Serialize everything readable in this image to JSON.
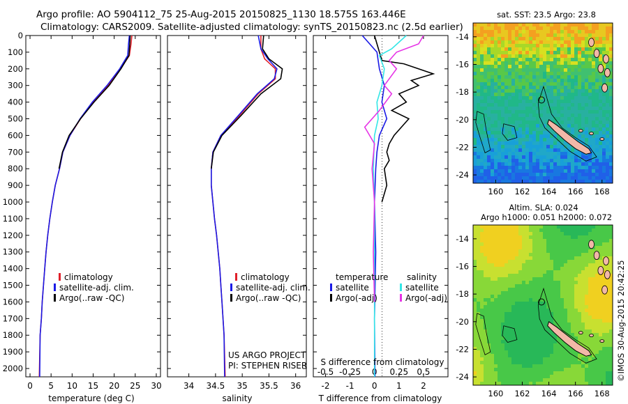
{
  "header": {
    "line1": "Argo profile: AO 5904112_75 25-Aug-2015 20150825_1130 18.575S 163.446E",
    "line2": "Climatology: CARS2009. Satellite-adjusted climatology: synTS_20150823.nc (2.5d earlier)"
  },
  "colors": {
    "climatology": "#e0202a",
    "satellite": "#1a1ae6",
    "argo": "#000000",
    "sal_satellite": "#33e6e6",
    "sal_argo": "#e633e6"
  },
  "credit": {
    "line1": "US ARGO PROJECT",
    "line2": "PI: STEPHEN RISER"
  },
  "watermark": "©IMOS 30-Aug-2015 20:42:25",
  "chart_data": [
    {
      "type": "line",
      "panel": "temperature",
      "xlabel": "temperature (deg C)",
      "xlim": [
        -1,
        31
      ],
      "ylim": [
        2050,
        0
      ],
      "yreversed": true,
      "x_ticks": [
        0,
        5,
        10,
        15,
        20,
        25,
        30
      ],
      "y_ticks": [
        0,
        100,
        200,
        300,
        400,
        500,
        600,
        700,
        800,
        900,
        1000,
        1100,
        1200,
        1300,
        1400,
        1500,
        1600,
        1700,
        1800,
        1900,
        2000
      ],
      "legend": [
        "climatology",
        "satellite-adj. clim.",
        "Argo(..raw -QC)"
      ],
      "series": [
        {
          "name": "climatology",
          "color_key": "climatology",
          "x": [
            24.2,
            24.0,
            23.6,
            21.5,
            18.5,
            15.0,
            12.0,
            9.5,
            7.8,
            7.0,
            6.0,
            5.3,
            4.7,
            4.2,
            3.8,
            3.5,
            3.2,
            2.9,
            2.7,
            2.4,
            2.2
          ],
          "y": [
            0,
            50,
            120,
            200,
            300,
            400,
            500,
            600,
            700,
            800,
            900,
            1000,
            1100,
            1200,
            1300,
            1400,
            1500,
            1600,
            1700,
            1800,
            2050
          ]
        },
        {
          "name": "satellite-adj. clim.",
          "color_key": "satellite",
          "x": [
            23.6,
            23.4,
            23.2,
            21.3,
            18.3,
            14.8,
            11.9,
            9.5,
            7.8,
            7.0,
            6.0,
            5.3,
            4.7,
            4.2,
            3.8,
            3.5,
            3.2,
            2.9,
            2.7,
            2.4,
            2.3
          ],
          "y": [
            0,
            50,
            120,
            200,
            300,
            400,
            500,
            600,
            700,
            800,
            900,
            1000,
            1100,
            1200,
            1300,
            1400,
            1500,
            1600,
            1700,
            1800,
            2050
          ]
        },
        {
          "name": "Argo(..raw -QC)",
          "color_key": "argo",
          "x": [
            23.8,
            23.7,
            23.5,
            21.6,
            18.8,
            15.2,
            12.0,
            9.3,
            7.7,
            6.9
          ],
          "y": [
            0,
            50,
            120,
            200,
            300,
            400,
            500,
            600,
            700,
            800
          ]
        }
      ]
    },
    {
      "type": "line",
      "panel": "salinity",
      "xlabel": "salinity",
      "xlim": [
        33.6,
        36.2
      ],
      "ylim": [
        2050,
        0
      ],
      "yreversed": true,
      "x_ticks": [
        34,
        34.5,
        35,
        35.5,
        36
      ],
      "legend": [
        "climatology",
        "satellite-adj. clim.",
        "Argo(..raw -QC)"
      ],
      "series": [
        {
          "name": "climatology",
          "color_key": "climatology",
          "x": [
            35.35,
            35.35,
            35.42,
            35.62,
            35.62,
            35.3,
            34.95,
            34.6,
            34.45,
            34.42,
            34.42,
            34.45,
            34.48,
            34.52,
            34.55,
            34.58,
            34.6,
            34.62,
            34.64,
            34.66,
            34.68
          ],
          "y": [
            0,
            80,
            140,
            200,
            260,
            350,
            480,
            600,
            700,
            800,
            900,
            1000,
            1100,
            1200,
            1300,
            1400,
            1500,
            1600,
            1700,
            1800,
            2050
          ]
        },
        {
          "name": "satellite-adj. clim.",
          "color_key": "satellite",
          "x": [
            35.3,
            35.35,
            35.48,
            35.65,
            35.6,
            35.28,
            34.93,
            34.6,
            34.45,
            34.42,
            34.42,
            34.45,
            34.48,
            34.52,
            34.55,
            34.58,
            34.6,
            34.62,
            34.64,
            34.66,
            34.67
          ],
          "y": [
            0,
            80,
            140,
            200,
            260,
            350,
            480,
            600,
            700,
            800,
            900,
            1000,
            1100,
            1200,
            1300,
            1400,
            1500,
            1600,
            1700,
            1800,
            2050
          ]
        },
        {
          "name": "Argo(..raw -QC)",
          "color_key": "argo",
          "x": [
            35.4,
            35.38,
            35.5,
            35.75,
            35.72,
            35.35,
            34.98,
            34.62,
            34.46,
            34.42
          ],
          "y": [
            0,
            80,
            140,
            200,
            260,
            350,
            480,
            600,
            700,
            800
          ]
        }
      ]
    },
    {
      "type": "line",
      "panel": "difference",
      "xlabel": "T difference from climatology",
      "x2label": "S difference from climatology",
      "xlim": [
        -2.5,
        3.0
      ],
      "x2lim": [
        -0.625,
        0.75
      ],
      "ylim": [
        2050,
        0
      ],
      "yreversed": true,
      "x_ticks": [
        -2,
        -1,
        0,
        1,
        2
      ],
      "x2_ticks": [
        "-0.5",
        "-0.25",
        "0",
        "0.25",
        "0.5"
      ],
      "legend_temperature": {
        "title": "temperature",
        "items": [
          "satellite",
          "Argo(-adj)"
        ]
      },
      "legend_salinity": {
        "title": "salinity",
        "items": [
          "satellite",
          "Argo(-adj)"
        ]
      },
      "series": [
        {
          "name": "satellite",
          "group": "temperature",
          "color_key": "satellite",
          "x": [
            -0.5,
            0.1,
            0.2,
            0.4,
            0.3,
            0.5,
            0.2,
            0.1,
            0.05,
            0.0,
            0.05,
            0.0,
            0.02
          ],
          "y": [
            0,
            100,
            200,
            300,
            400,
            500,
            600,
            700,
            800,
            1000,
            1300,
            1700,
            2050
          ]
        },
        {
          "name": "Argo(-adj)",
          "group": "temperature",
          "color_key": "argo",
          "x": [
            0.0,
            0.3,
            1.2,
            2.4,
            1.5,
            1.8,
            1.0,
            1.3,
            0.7,
            1.4,
            1.1,
            0.8,
            0.6,
            0.5,
            0.6,
            0.4,
            0.5,
            0.3
          ],
          "y": [
            0,
            150,
            170,
            230,
            270,
            300,
            350,
            400,
            450,
            500,
            550,
            600,
            650,
            700,
            750,
            800,
            900,
            1000
          ]
        },
        {
          "name": "satellite",
          "group": "salinity",
          "color_key": "sal_satellite",
          "x": [
            1.3,
            0.7,
            0.2,
            0.4,
            0.3,
            0.1,
            0.15,
            0.0,
            -0.05,
            0.0,
            0.0,
            0.0
          ],
          "y": [
            0,
            80,
            120,
            200,
            300,
            400,
            500,
            600,
            800,
            1000,
            1500,
            2050
          ]
        },
        {
          "name": "Argo(-adj)",
          "group": "salinity",
          "color_key": "sal_argo",
          "x": [
            2.0,
            1.8,
            0.9,
            0.6,
            0.9,
            0.4,
            0.7,
            0.2,
            -0.4,
            0.0,
            -0.1,
            0.0,
            -0.05,
            0.0
          ],
          "y": [
            0,
            50,
            100,
            150,
            200,
            300,
            350,
            450,
            550,
            650,
            800,
            1000,
            1300,
            1600
          ]
        }
      ]
    },
    {
      "type": "heatmap",
      "panel": "sst-map",
      "title": "sat. SST: 23.5  Argo: 23.8",
      "x_ticks": [
        160,
        162,
        164,
        166,
        168
      ],
      "y_ticks": [
        -14,
        -16,
        -18,
        -20,
        -22,
        -24
      ],
      "xlim": [
        158.3,
        168.8
      ],
      "ylim": [
        -24.6,
        -13.0
      ],
      "argo_position": {
        "lon": 163.446,
        "lat": -18.575
      }
    },
    {
      "type": "heatmap",
      "panel": "sla-map",
      "title_line1": "Altim. SLA: 0.024",
      "title_line2": "Argo h1000: 0.051 h2000: 0.072",
      "x_ticks": [
        160,
        162,
        164,
        166,
        168
      ],
      "y_ticks": [
        -14,
        -16,
        -18,
        -20,
        -22,
        -24
      ],
      "xlim": [
        158.3,
        168.8
      ],
      "ylim": [
        -24.6,
        -13.0
      ],
      "argo_position": {
        "lon": 163.446,
        "lat": -18.575
      }
    }
  ]
}
